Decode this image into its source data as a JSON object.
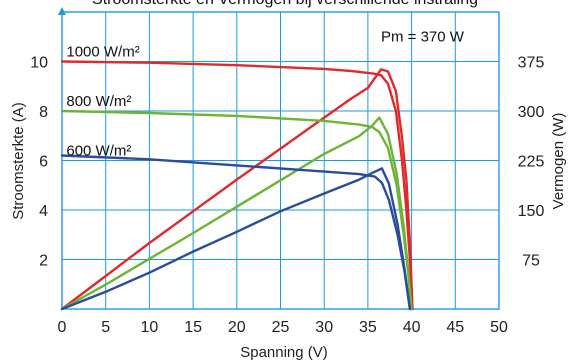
{
  "header_fragment": "Stroomsterkte en Vermogen bij verschillende instraling",
  "chart_data": {
    "type": "line",
    "xlabel": "Spanning (V)",
    "ylabel_left": "Stroomsterkte (A)",
    "ylabel_right": "Vermogen (W)",
    "xlim": [
      0,
      50
    ],
    "ylim_left": [
      0,
      12
    ],
    "ylim_right": [
      0,
      450
    ],
    "xticks": [
      "0",
      "5",
      "10",
      "15",
      "20",
      "25",
      "30",
      "35",
      "40",
      "45",
      "50"
    ],
    "yticks_left": [
      "2",
      "4",
      "6",
      "8",
      "10"
    ],
    "yticks_right": [
      "75",
      "150",
      "225",
      "300",
      "375"
    ],
    "grid": true,
    "annotations": [
      {
        "text": "Pm = 370 W",
        "x": 36.5,
        "y_left": 10.8
      },
      {
        "text": "1000 W/m²",
        "x": 0.5,
        "y_left": 10.2
      },
      {
        "text": "800 W/m²",
        "x": 0.5,
        "y_left": 8.2
      },
      {
        "text": "600 W/m²",
        "x": 0.5,
        "y_left": 6.2
      }
    ],
    "series": [
      {
        "name": "1000 W/m²",
        "kind": "current",
        "axis": "left",
        "color": "#e02a2a",
        "points": [
          [
            0,
            10.0
          ],
          [
            10,
            9.95
          ],
          [
            20,
            9.85
          ],
          [
            30,
            9.7
          ],
          [
            33,
            9.62
          ],
          [
            35.5,
            9.52
          ],
          [
            36.5,
            9.45
          ],
          [
            37.3,
            9.1
          ],
          [
            38.2,
            8.0
          ],
          [
            38.9,
            6.0
          ],
          [
            39.4,
            4.0
          ],
          [
            39.8,
            2.0
          ],
          [
            40.1,
            0
          ]
        ]
      },
      {
        "name": "1000 W/m²",
        "kind": "power",
        "axis": "right",
        "color": "#e02a2a",
        "points": [
          [
            0,
            0
          ],
          [
            5,
            50
          ],
          [
            10,
            100
          ],
          [
            15,
            148
          ],
          [
            20,
            196
          ],
          [
            25,
            243
          ],
          [
            30,
            290
          ],
          [
            33,
            318
          ],
          [
            35,
            335
          ],
          [
            36.5,
            363
          ],
          [
            37.3,
            360
          ],
          [
            38.2,
            330
          ],
          [
            38.9,
            260
          ],
          [
            39.4,
            195
          ],
          [
            39.8,
            100
          ],
          [
            40.1,
            0
          ]
        ]
      },
      {
        "name": "800 W/m²",
        "kind": "current",
        "axis": "left",
        "color": "#6ab536",
        "points": [
          [
            0,
            8.0
          ],
          [
            10,
            7.92
          ],
          [
            20,
            7.8
          ],
          [
            30,
            7.6
          ],
          [
            34,
            7.45
          ],
          [
            35.5,
            7.35
          ],
          [
            36.3,
            7.15
          ],
          [
            37.3,
            6.5
          ],
          [
            38.3,
            5.0
          ],
          [
            39.1,
            3.0
          ],
          [
            39.6,
            1.5
          ],
          [
            40.0,
            0
          ]
        ]
      },
      {
        "name": "800 W/m²",
        "kind": "power",
        "axis": "right",
        "color": "#6ab536",
        "points": [
          [
            0,
            0
          ],
          [
            5,
            37
          ],
          [
            10,
            76
          ],
          [
            15,
            115
          ],
          [
            20,
            155
          ],
          [
            25,
            195
          ],
          [
            30,
            235
          ],
          [
            34,
            262
          ],
          [
            35.5,
            278
          ],
          [
            36.3,
            290
          ],
          [
            37.3,
            265
          ],
          [
            38.3,
            205
          ],
          [
            39.1,
            125
          ],
          [
            39.6,
            60
          ],
          [
            40.0,
            0
          ]
        ]
      },
      {
        "name": "600 W/m²",
        "kind": "current",
        "axis": "left",
        "color": "#2a4c9a",
        "points": [
          [
            0,
            6.2
          ],
          [
            10,
            6.05
          ],
          [
            20,
            5.8
          ],
          [
            30,
            5.55
          ],
          [
            34,
            5.45
          ],
          [
            35.8,
            5.35
          ],
          [
            36.6,
            5.1
          ],
          [
            37.4,
            4.4
          ],
          [
            38.4,
            3.0
          ],
          [
            39.2,
            1.5
          ],
          [
            39.8,
            0
          ]
        ]
      },
      {
        "name": "600 W/m²",
        "kind": "power",
        "axis": "right",
        "color": "#2a4c9a",
        "points": [
          [
            0,
            0
          ],
          [
            5,
            26
          ],
          [
            10,
            55
          ],
          [
            15,
            87
          ],
          [
            20,
            117
          ],
          [
            25,
            148
          ],
          [
            30,
            175
          ],
          [
            34,
            196
          ],
          [
            35.8,
            208
          ],
          [
            36.6,
            213
          ],
          [
            37.4,
            190
          ],
          [
            38.4,
            128
          ],
          [
            39.2,
            60
          ],
          [
            39.8,
            0
          ]
        ]
      }
    ]
  }
}
